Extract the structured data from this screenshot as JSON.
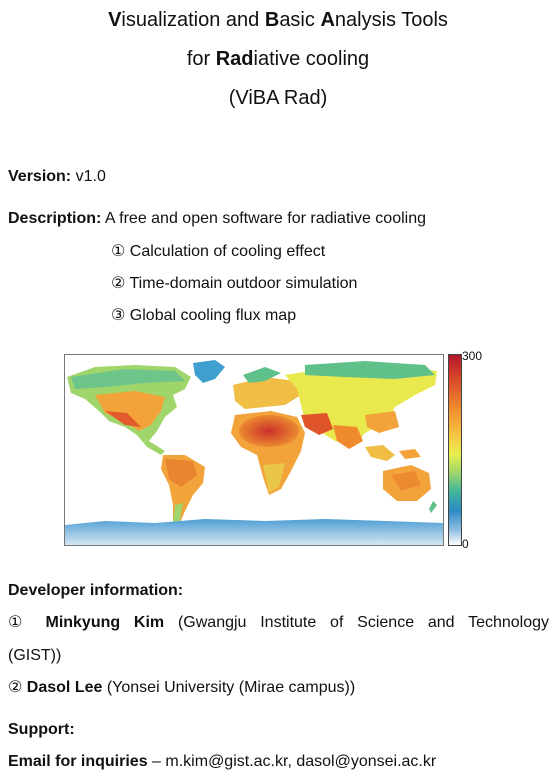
{
  "title": {
    "line1": {
      "p1": "V",
      "p2": "isualization and ",
      "p3": "B",
      "p4": "asic ",
      "p5": "A",
      "p6": "nalysis Tools"
    },
    "line2": {
      "p1": "for ",
      "p2": "Rad",
      "p3": "iative cooling"
    },
    "line3": "(ViBA Rad)"
  },
  "version": {
    "label": "Version:",
    "value": "v1.0"
  },
  "description": {
    "label": "Description:",
    "value": "A free and open software for radiative cooling",
    "items": [
      "① Calculation of cooling effect",
      "② Time-domain outdoor simulation",
      "③ Global cooling flux map"
    ]
  },
  "map": {
    "colorbar_max": "300",
    "colorbar_min": "0",
    "colors": {
      "ocean": "#ffffff",
      "hot": "#d6452a",
      "warm": "#f2a33a",
      "mild": "#e3e84d",
      "cool": "#5fc08a",
      "cold": "#2e8bc6",
      "ice": "#bcd7ec"
    }
  },
  "developer": {
    "label": "Developer information:",
    "dev1": {
      "num": "①",
      "name": "Minkyung Kim",
      "affil_a": "(Gwangju Institute of Science and Technology",
      "affil_b": "(GIST))"
    },
    "dev2": {
      "num": "②",
      "name": "Dasol Lee",
      "affil": "(Yonsei University (Mirae campus))"
    }
  },
  "support": {
    "label": "Support:",
    "email_label": "Email for inquiries",
    "dash": "–",
    "emails": "m.kim@gist.ac.kr, dasol@yonsei.ac.kr"
  }
}
